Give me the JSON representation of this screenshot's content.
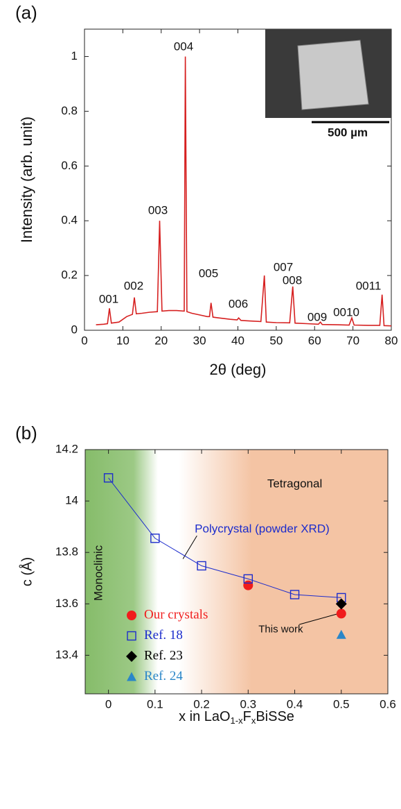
{
  "chart_data": [
    {
      "type": "line",
      "panel": "(a)",
      "x_label": "2θ (deg)",
      "y_label": "Intensity (arb. unit)",
      "color": "#d62020",
      "xlim": [
        0,
        80
      ],
      "xticks": [
        0,
        10,
        20,
        30,
        40,
        50,
        60,
        70,
        80
      ],
      "ylim": [
        0,
        1.1
      ],
      "yticks": [
        0,
        0.2,
        0.4,
        0.6,
        0.8,
        1
      ],
      "x": [
        3,
        5,
        6,
        6.5,
        7,
        9,
        11,
        12.5,
        13,
        13.5,
        15,
        17,
        19,
        19.6,
        20.2,
        22,
        24,
        26,
        26.3,
        26.7,
        28,
        30,
        32,
        32.6,
        33,
        33.5,
        35,
        38,
        39.8,
        40.2,
        40.8,
        43,
        46,
        46.9,
        47.4,
        50,
        53.5,
        54.3,
        54.9,
        58,
        61,
        61.5,
        62,
        66,
        69,
        69.7,
        70.3,
        74,
        77,
        77.6,
        78.1,
        80
      ],
      "values": [
        0.02,
        0.022,
        0.024,
        0.08,
        0.026,
        0.03,
        0.05,
        0.058,
        0.12,
        0.06,
        0.062,
        0.066,
        0.068,
        0.4,
        0.07,
        0.072,
        0.072,
        0.07,
        1.0,
        0.068,
        0.062,
        0.056,
        0.05,
        0.05,
        0.1,
        0.048,
        0.045,
        0.04,
        0.038,
        0.045,
        0.036,
        0.034,
        0.032,
        0.2,
        0.03,
        0.028,
        0.027,
        0.16,
        0.026,
        0.024,
        0.022,
        0.03,
        0.021,
        0.02,
        0.019,
        0.045,
        0.019,
        0.018,
        0.018,
        0.13,
        0.017,
        0.016
      ],
      "annotations": [
        "001",
        "002",
        "003",
        "004",
        "005",
        "006",
        "007",
        "008",
        "009",
        "0010",
        "0011"
      ],
      "inset_label": "500 µm"
    },
    {
      "type": "scatter",
      "panel": "(b)",
      "x_label": [
        "x in LaO",
        "1-x",
        "F",
        "x",
        "BiSSe"
      ],
      "y_label": "c (Å)",
      "xlim": [
        -0.05,
        0.6
      ],
      "xticks": [
        0,
        0.1,
        0.2,
        0.3,
        0.4,
        0.5,
        0.6
      ],
      "ylim": [
        13.25,
        14.2
      ],
      "yticks": [
        13.4,
        13.6,
        13.8,
        14,
        14.2
      ],
      "regions": [
        "Monoclinic",
        "Tetragonal"
      ],
      "annotations": [
        "Polycrystal (powder XRD)",
        "This work"
      ],
      "series": [
        {
          "name": "Our crystals",
          "color": "#f01c1c",
          "marker": "circle",
          "x": [
            0.3,
            0.5
          ],
          "values": [
            13.672,
            13.562
          ]
        },
        {
          "name": "Ref. 18",
          "color": "#1c2ccc",
          "marker": "square",
          "connected": true,
          "x": [
            0,
            0.1,
            0.2,
            0.3,
            0.4,
            0.5
          ],
          "values": [
            14.09,
            13.855,
            13.748,
            13.697,
            13.636,
            13.624
          ]
        },
        {
          "name": "Ref. 23",
          "color": "#000000",
          "marker": "diamond",
          "x": [
            0.5
          ],
          "values": [
            13.6
          ]
        },
        {
          "name": "Ref. 24",
          "color": "#2a86c8",
          "marker": "triangle",
          "x": [
            0.5
          ],
          "values": [
            13.48
          ]
        }
      ]
    }
  ]
}
